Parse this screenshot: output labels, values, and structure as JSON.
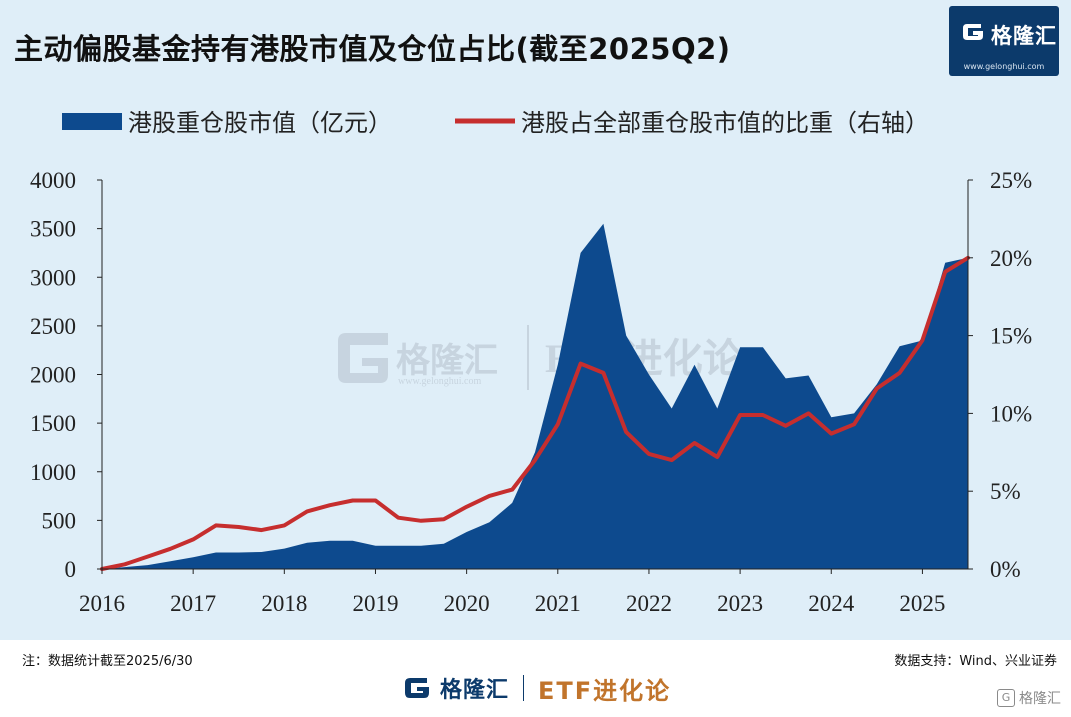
{
  "header": {
    "title": "主动偏股基金持有港股市值及仓位占比(截至2025Q2)",
    "brand_name": "格隆汇",
    "brand_url": "www.gelonghui.com"
  },
  "watermark": {
    "brand": "格隆汇",
    "url": "www.gelonghui.com",
    "tag": "ETF进化论"
  },
  "footer": {
    "note": "注：数据统计截至2025/6/30",
    "source": "数据支持：Wind、兴业证券",
    "brand_name": "格隆汇",
    "tag": "ETF进化论",
    "corner_brand": "格隆汇"
  },
  "colors": {
    "background": "#dfeef8",
    "area": "#0d4a8e",
    "line": "#c62e2e",
    "brand": "#0c3a6b",
    "tag": "#c1742b"
  },
  "chart_data": {
    "type": "area",
    "x_tick_labels": [
      "2016",
      "2017",
      "2018",
      "2019",
      "2020",
      "2021",
      "2022",
      "2023",
      "2024",
      "2025"
    ],
    "x_range": [
      2016.0,
      2025.5
    ],
    "y_left": {
      "ticks": [
        "0",
        "500",
        "1000",
        "1500",
        "2000",
        "2500",
        "3000",
        "3500",
        "4000"
      ],
      "range": [
        0,
        4000
      ]
    },
    "y_right": {
      "ticks": [
        "0%",
        "5%",
        "10%",
        "15%",
        "20%",
        "25%"
      ],
      "range": [
        0,
        25
      ]
    },
    "legend_position": "top",
    "series": [
      {
        "name": "港股重仓股市值（亿元）",
        "type": "area",
        "axis": "left",
        "x": [
          2016.0,
          2016.25,
          2016.5,
          2016.75,
          2017.0,
          2017.25,
          2017.5,
          2017.75,
          2018.0,
          2018.25,
          2018.5,
          2018.75,
          2019.0,
          2019.25,
          2019.5,
          2019.75,
          2020.0,
          2020.25,
          2020.5,
          2020.75,
          2021.0,
          2021.25,
          2021.5,
          2021.75,
          2022.0,
          2022.25,
          2022.5,
          2022.75,
          2023.0,
          2023.25,
          2023.5,
          2023.75,
          2024.0,
          2024.25,
          2024.5,
          2024.75,
          2025.0,
          2025.25,
          2025.5
        ],
        "values": [
          0,
          20,
          40,
          80,
          120,
          170,
          170,
          175,
          210,
          270,
          290,
          290,
          240,
          240,
          240,
          260,
          380,
          480,
          680,
          1200,
          2100,
          3250,
          3550,
          2400,
          2000,
          1650,
          2100,
          1650,
          2280,
          2280,
          1960,
          1990,
          1560,
          1600,
          1900,
          2290,
          2350,
          3150,
          3200
        ]
      },
      {
        "name": "港股占全部重仓股市值的比重（右轴）",
        "type": "line",
        "axis": "right",
        "x": [
          2016.0,
          2016.25,
          2016.5,
          2016.75,
          2017.0,
          2017.25,
          2017.5,
          2017.75,
          2018.0,
          2018.25,
          2018.5,
          2018.75,
          2019.0,
          2019.25,
          2019.5,
          2019.75,
          2020.0,
          2020.25,
          2020.5,
          2020.75,
          2021.0,
          2021.25,
          2021.5,
          2021.75,
          2022.0,
          2022.25,
          2022.5,
          2022.75,
          2023.0,
          2023.25,
          2023.5,
          2023.75,
          2024.0,
          2024.25,
          2024.5,
          2024.75,
          2025.0,
          2025.25,
          2025.5
        ],
        "values": [
          0.0,
          0.3,
          0.8,
          1.3,
          1.9,
          2.8,
          2.7,
          2.5,
          2.8,
          3.7,
          4.1,
          4.4,
          4.4,
          3.3,
          3.1,
          3.2,
          4.0,
          4.7,
          5.1,
          7.0,
          9.3,
          13.2,
          12.6,
          8.8,
          7.4,
          7.0,
          8.1,
          7.2,
          9.9,
          9.9,
          9.2,
          10.0,
          8.7,
          9.3,
          11.6,
          12.6,
          14.7,
          19.1,
          20.0
        ]
      }
    ]
  }
}
